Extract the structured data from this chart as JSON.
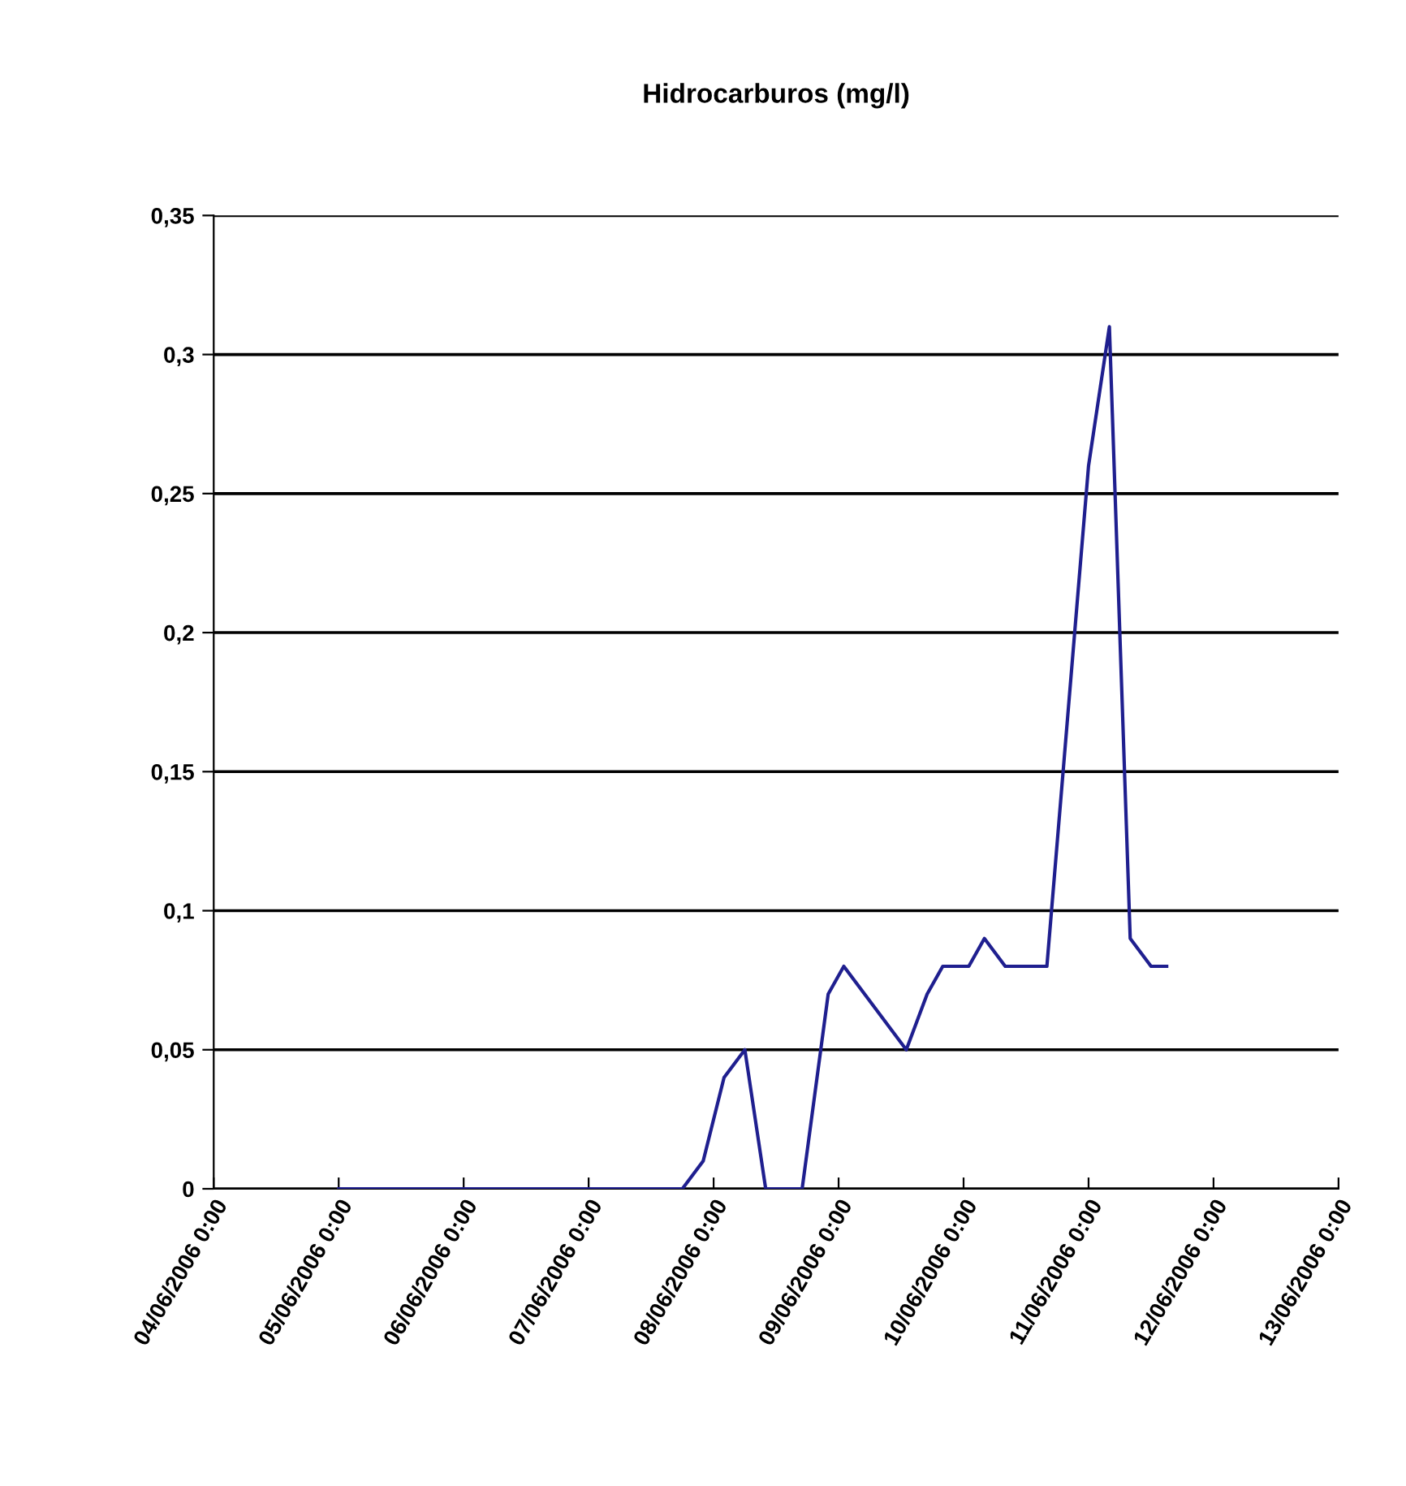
{
  "chart_data": {
    "type": "line",
    "title": "Hidrocarburos (mg/l)",
    "x": [
      "2006-06-05T00:00",
      "2006-06-07T18:00",
      "2006-06-07T22:00",
      "2006-06-08T02:00",
      "2006-06-08T06:00",
      "2006-06-08T10:00",
      "2006-06-08T17:00",
      "2006-06-08T22:00",
      "2006-06-09T01:00",
      "2006-06-09T05:00",
      "2006-06-09T09:00",
      "2006-06-09T13:00",
      "2006-06-09T17:00",
      "2006-06-09T20:00",
      "2006-06-10T01:00",
      "2006-06-10T04:00",
      "2006-06-10T08:00",
      "2006-06-10T16:00",
      "2006-06-11T00:00",
      "2006-06-11T04:00",
      "2006-06-11T08:00",
      "2006-06-11T12:00",
      "2006-06-11T15:00"
    ],
    "series": [
      {
        "color": "#1f1f8f",
        "values": [
          0,
          0,
          0.01,
          0.04,
          0.05,
          0,
          0,
          0.07,
          0.08,
          0.07,
          0.06,
          0.05,
          0.07,
          0.08,
          0.08,
          0.09,
          0.08,
          0.08,
          0.26,
          0.31,
          0.09,
          0.08,
          0.08
        ]
      }
    ],
    "xlim": [
      "2006-06-04T00:00",
      "2006-06-13T00:00"
    ],
    "xticks": [
      {
        "value": "2006-06-04T00:00",
        "label": "04/06/2006 0:00"
      },
      {
        "value": "2006-06-05T00:00",
        "label": "05/06/2006 0:00"
      },
      {
        "value": "2006-06-06T00:00",
        "label": "06/06/2006 0:00"
      },
      {
        "value": "2006-06-07T00:00",
        "label": "07/06/2006 0:00"
      },
      {
        "value": "2006-06-08T00:00",
        "label": "08/06/2006 0:00"
      },
      {
        "value": "2006-06-09T00:00",
        "label": "09/06/2006 0:00"
      },
      {
        "value": "2006-06-10T00:00",
        "label": "10/06/2006 0:00"
      },
      {
        "value": "2006-06-11T00:00",
        "label": "11/06/2006 0:00"
      },
      {
        "value": "2006-06-12T00:00",
        "label": "12/06/2006 0:00"
      },
      {
        "value": "2006-06-13T00:00",
        "label": "13/06/2006 0:00"
      }
    ],
    "ylim": [
      0,
      0.35
    ],
    "yticks": [
      0,
      {
        "value": 0.05,
        "label": "0,05"
      },
      {
        "value": 0.1,
        "label": "0,1"
      },
      {
        "value": 0.15,
        "label": "0,15"
      },
      {
        "value": 0.2,
        "label": "0,2"
      },
      {
        "value": 0.25,
        "label": "0,25"
      },
      {
        "value": 0.3,
        "label": "0,3"
      },
      {
        "value": 0.35,
        "label": "0,35"
      }
    ],
    "grid": "y",
    "marker": "none",
    "line_style": "solid"
  }
}
